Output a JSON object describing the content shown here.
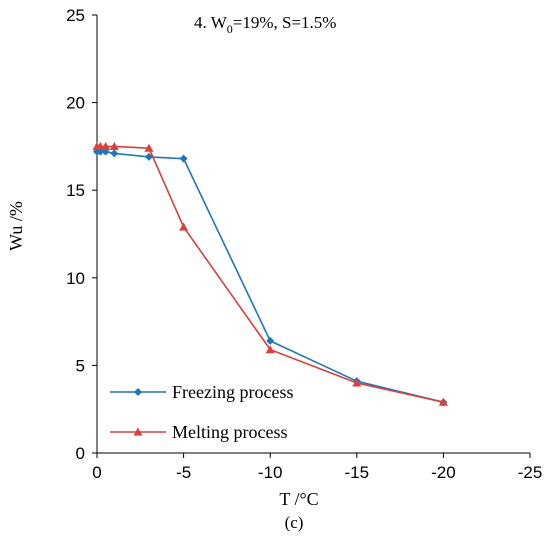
{
  "chart_data": {
    "type": "line",
    "title": "",
    "annotation": {
      "lead": "4. W",
      "sub": "0",
      "tail": "=19%, S=1.5%"
    },
    "caption": "(c)",
    "xlabel": "T /°C",
    "ylabel": "Wu /%",
    "xlim": [
      0,
      -25
    ],
    "ylim": [
      0,
      25
    ],
    "x_ticks": [
      0,
      -5,
      -10,
      -15,
      -20,
      -25
    ],
    "y_ticks": [
      0,
      5,
      10,
      15,
      20,
      25
    ],
    "grid": false,
    "legend_position": "bottom-left",
    "series": [
      {
        "name": "Freezing process",
        "color": "#1f77b4",
        "marker": "diamond",
        "x": [
          0,
          -0.2,
          -0.5,
          -1,
          -3,
          -5,
          -10,
          -15,
          -20
        ],
        "y": [
          17.2,
          17.2,
          17.2,
          17.1,
          16.9,
          16.8,
          6.4,
          4.1,
          2.9
        ]
      },
      {
        "name": "Melting process",
        "color": "#d94040",
        "marker": "triangle",
        "x": [
          0,
          -0.2,
          -0.5,
          -1,
          -3,
          -5,
          -10,
          -15,
          -20
        ],
        "y": [
          17.5,
          17.5,
          17.5,
          17.5,
          17.4,
          12.9,
          5.9,
          4.0,
          2.9
        ]
      }
    ]
  }
}
